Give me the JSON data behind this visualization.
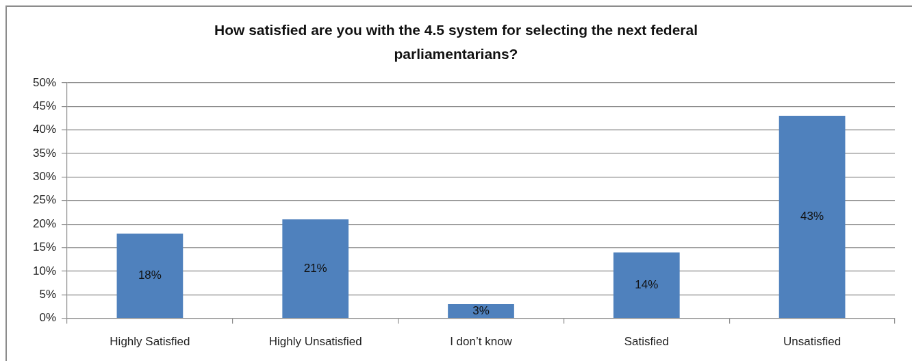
{
  "chart_data": {
    "type": "bar",
    "title": "How satisfied are you with the 4.5 system for selecting the next federal parliamentarians?",
    "categories": [
      "Highly Satisfied",
      "Highly Unsatisfied",
      "I don’t know",
      "Satisfied",
      "Unsatisfied"
    ],
    "values": [
      18,
      21,
      3,
      14,
      43
    ],
    "value_labels": [
      "18%",
      "21%",
      "3%",
      "14%",
      "43%"
    ],
    "color": "#4f81bd",
    "ylim": [
      0,
      50
    ],
    "yticks": [
      {
        "value": 0,
        "label": "0%"
      },
      {
        "value": 5,
        "label": "5%"
      },
      {
        "value": 10,
        "label": "10%"
      },
      {
        "value": 15,
        "label": "15%"
      },
      {
        "value": 20,
        "label": "20%"
      },
      {
        "value": 25,
        "label": "25%"
      },
      {
        "value": 30,
        "label": "30%"
      },
      {
        "value": 35,
        "label": "35%"
      },
      {
        "value": 40,
        "label": "40%"
      },
      {
        "value": 45,
        "label": "45%"
      },
      {
        "value": 50,
        "label": "50%"
      }
    ],
    "grid": "y"
  }
}
